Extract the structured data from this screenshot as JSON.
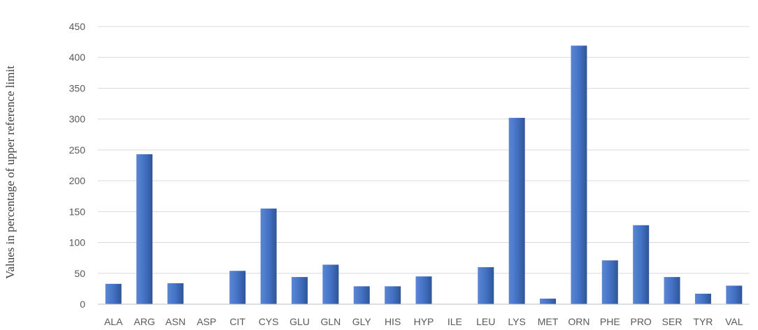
{
  "chart_data": {
    "type": "bar",
    "title": "",
    "xlabel": "",
    "ylabel": "Values in percentage of upper reference limit",
    "categories": [
      "ALA",
      "ARG",
      "ASN",
      "ASP",
      "CIT",
      "CYS",
      "GLU",
      "GLN",
      "GLY",
      "HIS",
      "HYP",
      "ILE",
      "LEU",
      "LYS",
      "MET",
      "ORN",
      "PHE",
      "PRO",
      "SER",
      "TYR",
      "VAL"
    ],
    "values": [
      33,
      243,
      34,
      0,
      54,
      155,
      44,
      64,
      29,
      29,
      45,
      0,
      60,
      302,
      9,
      419,
      71,
      128,
      44,
      17,
      30
    ],
    "ylim": [
      0,
      450
    ],
    "yticks": [
      0,
      50,
      100,
      150,
      200,
      250,
      300,
      350,
      400,
      450
    ],
    "grid": true,
    "legend": "none",
    "colors": {
      "bar": "#4472c4",
      "bar_light": "#5b86d4",
      "bar_dark": "#2f5597"
    }
  }
}
